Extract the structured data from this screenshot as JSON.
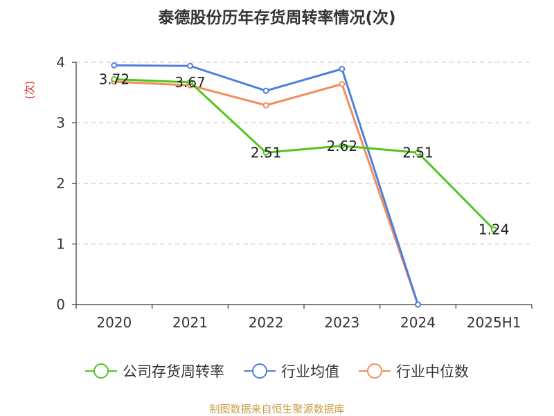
{
  "chart_data": {
    "type": "line",
    "title": "泰德股份历年存货周转率情况(次)",
    "ylabel": "(次)",
    "categories": [
      "2020",
      "2021",
      "2022",
      "2023",
      "2024",
      "2025H1"
    ],
    "yticks": [
      "0",
      "1",
      "2",
      "3",
      "4"
    ],
    "ylim": [
      0,
      4
    ],
    "grid": true,
    "legend_position": "bottom",
    "series": [
      {
        "name": "公司存货周转率",
        "color": "#52c41a",
        "values": [
          3.72,
          3.67,
          2.51,
          2.62,
          2.51,
          1.24
        ],
        "labels": [
          "3.72",
          "3.67",
          "2.51",
          "2.62",
          "2.51",
          "1.24"
        ]
      },
      {
        "name": "行业均值",
        "color": "#4f7fdb",
        "values": [
          3.95,
          3.94,
          3.53,
          3.89,
          0,
          null
        ]
      },
      {
        "name": "行业中位数",
        "color": "#f28c5c",
        "values": [
          3.68,
          3.62,
          3.29,
          3.64,
          0,
          null
        ]
      }
    ]
  },
  "footer": {
    "source": "制图数据来自恒生聚源数据库"
  }
}
